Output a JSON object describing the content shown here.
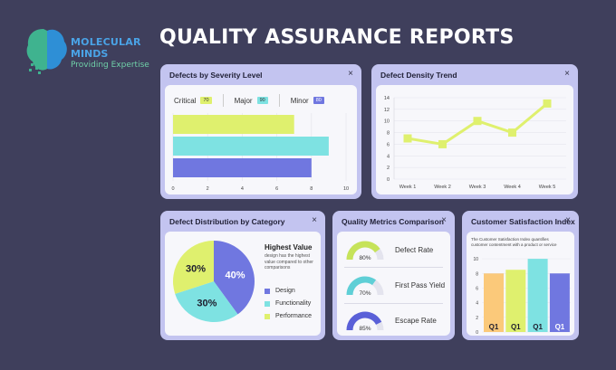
{
  "brand": {
    "name_line1": "MOLECULAR",
    "name_line2": "MINDS",
    "tagline": "Providing Expertise"
  },
  "page_title": "QUALITY ASSURANCE REPORTS",
  "close_glyph": "×",
  "severity": {
    "title": "Defects by Severity Level",
    "legend": [
      {
        "label": "Critical",
        "value": "70",
        "color": "#dff06e"
      },
      {
        "label": "Major",
        "value": "90",
        "color": "#7ee2e2"
      },
      {
        "label": "Minor",
        "value": "80",
        "color": "#7077e0"
      }
    ],
    "chart_data": {
      "type": "bar",
      "orientation": "horizontal",
      "categories": [
        "Critical",
        "Major",
        "Minor"
      ],
      "values": [
        7,
        9,
        8
      ],
      "colors": [
        "#dff06e",
        "#7ee2e2",
        "#7077e0"
      ],
      "xlim": [
        0,
        10
      ],
      "xticks": [
        0,
        2,
        4,
        6,
        8,
        10
      ],
      "grid": true
    }
  },
  "density": {
    "title": "Defect Density Trend",
    "chart_data": {
      "type": "line",
      "categories": [
        "Week 1",
        "Week 2",
        "Week 3",
        "Week 4",
        "Week 5"
      ],
      "values": [
        7,
        6,
        10,
        8,
        13
      ],
      "color": "#dff06e",
      "ylim": [
        0,
        14
      ],
      "yticks": [
        0,
        2,
        4,
        6,
        8,
        10,
        12,
        14
      ],
      "grid": true
    }
  },
  "distribution": {
    "title": "Defect Distribution by Category",
    "highest_title": "Highest Value",
    "highest_desc": "design has the highest value compared to other comparisons",
    "chart_data": {
      "type": "pie",
      "labels": [
        "Design",
        "Functionality",
        "Performance"
      ],
      "values": [
        40,
        30,
        30
      ],
      "value_labels": [
        "40%",
        "30%",
        "30%"
      ],
      "colors": [
        "#7077e0",
        "#7ee2e2",
        "#dff06e"
      ]
    }
  },
  "metrics": {
    "title": "Quality Metrics Comparison",
    "items": [
      {
        "label": "Defect Rate",
        "percent": 80,
        "value_label": "80%",
        "color": "#c6e35a"
      },
      {
        "label": "First Pass Yield",
        "percent": 70,
        "value_label": "70%",
        "color": "#5fcfd6"
      },
      {
        "label": "Escape Rate",
        "percent": 85,
        "value_label": "85%",
        "color": "#5a60d8"
      }
    ]
  },
  "csi": {
    "title": "Customer Satisfaction Index",
    "desc": "The Customer Satisfaction Index quantifies customer contentment with a product or service",
    "chart_data": {
      "type": "bar",
      "categories": [
        "Q1",
        "Q1",
        "Q1",
        "Q1"
      ],
      "values": [
        8,
        8.5,
        10,
        8
      ],
      "colors": [
        "#fbc97a",
        "#dff06e",
        "#7ee2e2",
        "#7077e0"
      ],
      "ylim": [
        0,
        11
      ],
      "yticks": [
        0,
        2,
        4,
        6,
        8,
        10
      ]
    }
  }
}
